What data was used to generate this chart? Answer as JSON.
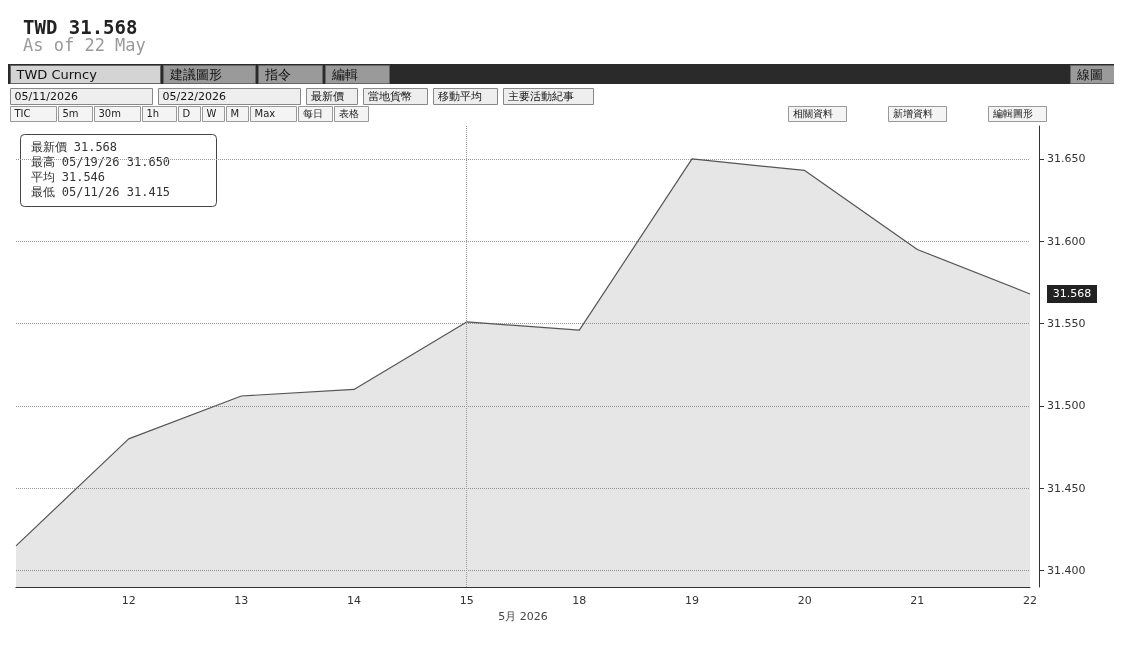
{
  "chart_data": {
    "type": "area",
    "title": "TWD 31.568",
    "subtitle": "As of 22 May",
    "xlabel": "5月 2026",
    "categories": [
      null,
      "12",
      "13",
      "14",
      "15",
      "18",
      "19",
      "20",
      "21",
      "22"
    ],
    "series": [
      {
        "color": "#555555",
        "values": [
          31.415,
          31.48,
          31.506,
          31.51,
          31.551,
          31.546,
          31.65,
          31.643,
          31.595,
          31.568
        ]
      }
    ],
    "ylim": [
      31.39,
      31.67
    ],
    "yticks": [
      {
        "value": 31.4,
        "label": "31.400"
      },
      {
        "value": 31.45,
        "label": "31.450"
      },
      {
        "value": 31.5,
        "label": "31.500"
      },
      {
        "value": 31.55,
        "label": "31.550"
      },
      {
        "value": 31.6,
        "label": "31.600"
      },
      {
        "value": 31.65,
        "label": "31.650"
      }
    ],
    "grid": "y",
    "marker": "none",
    "line_style": "solid",
    "ref_lines": [
      {
        "axis": "x",
        "value": "15",
        "color": "#999999",
        "line_style": "dotted"
      }
    ],
    "annotations": [
      "最新價 31.568",
      "最高 05/19/26 31.650",
      "平均 31.546",
      "最低 05/11/26 31.415",
      "TWD Curncy",
      "建議圖形",
      "指令",
      "編輯",
      "線圖",
      "05/11/2026",
      "05/22/2026",
      "最新價",
      "當地貨幣",
      "移動平均",
      "主要活動紀事",
      "TIC",
      "5m",
      "30m",
      "1h",
      "D",
      "W",
      "M",
      "Max",
      "每日",
      "表格",
      "相關資料",
      "新增資料",
      "編輯圖形",
      {
        "text": "31.568",
        "x": "22",
        "y": 31.568
      }
    ]
  }
}
